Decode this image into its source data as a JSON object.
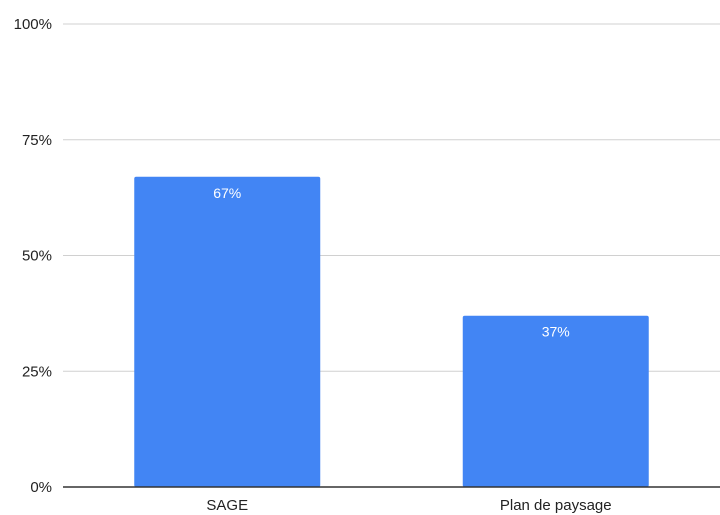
{
  "chart_data": {
    "type": "bar",
    "categories": [
      "SAGE",
      "Plan de paysage"
    ],
    "values": [
      67,
      37
    ],
    "data_labels": [
      "67%",
      "37%"
    ],
    "ylim": [
      0,
      100
    ],
    "y_ticks": [
      0,
      25,
      50,
      75,
      100
    ],
    "y_tick_labels": [
      "0%",
      "25%",
      "50%",
      "75%",
      "100%"
    ],
    "title": "",
    "xlabel": "",
    "ylabel": "",
    "grid": true,
    "legend": "none"
  },
  "colors": {
    "bar": "#4285f4",
    "gridline": "#d0d0d0",
    "axis": "#333333",
    "text": "#222222",
    "data_label": "#ffffff"
  }
}
